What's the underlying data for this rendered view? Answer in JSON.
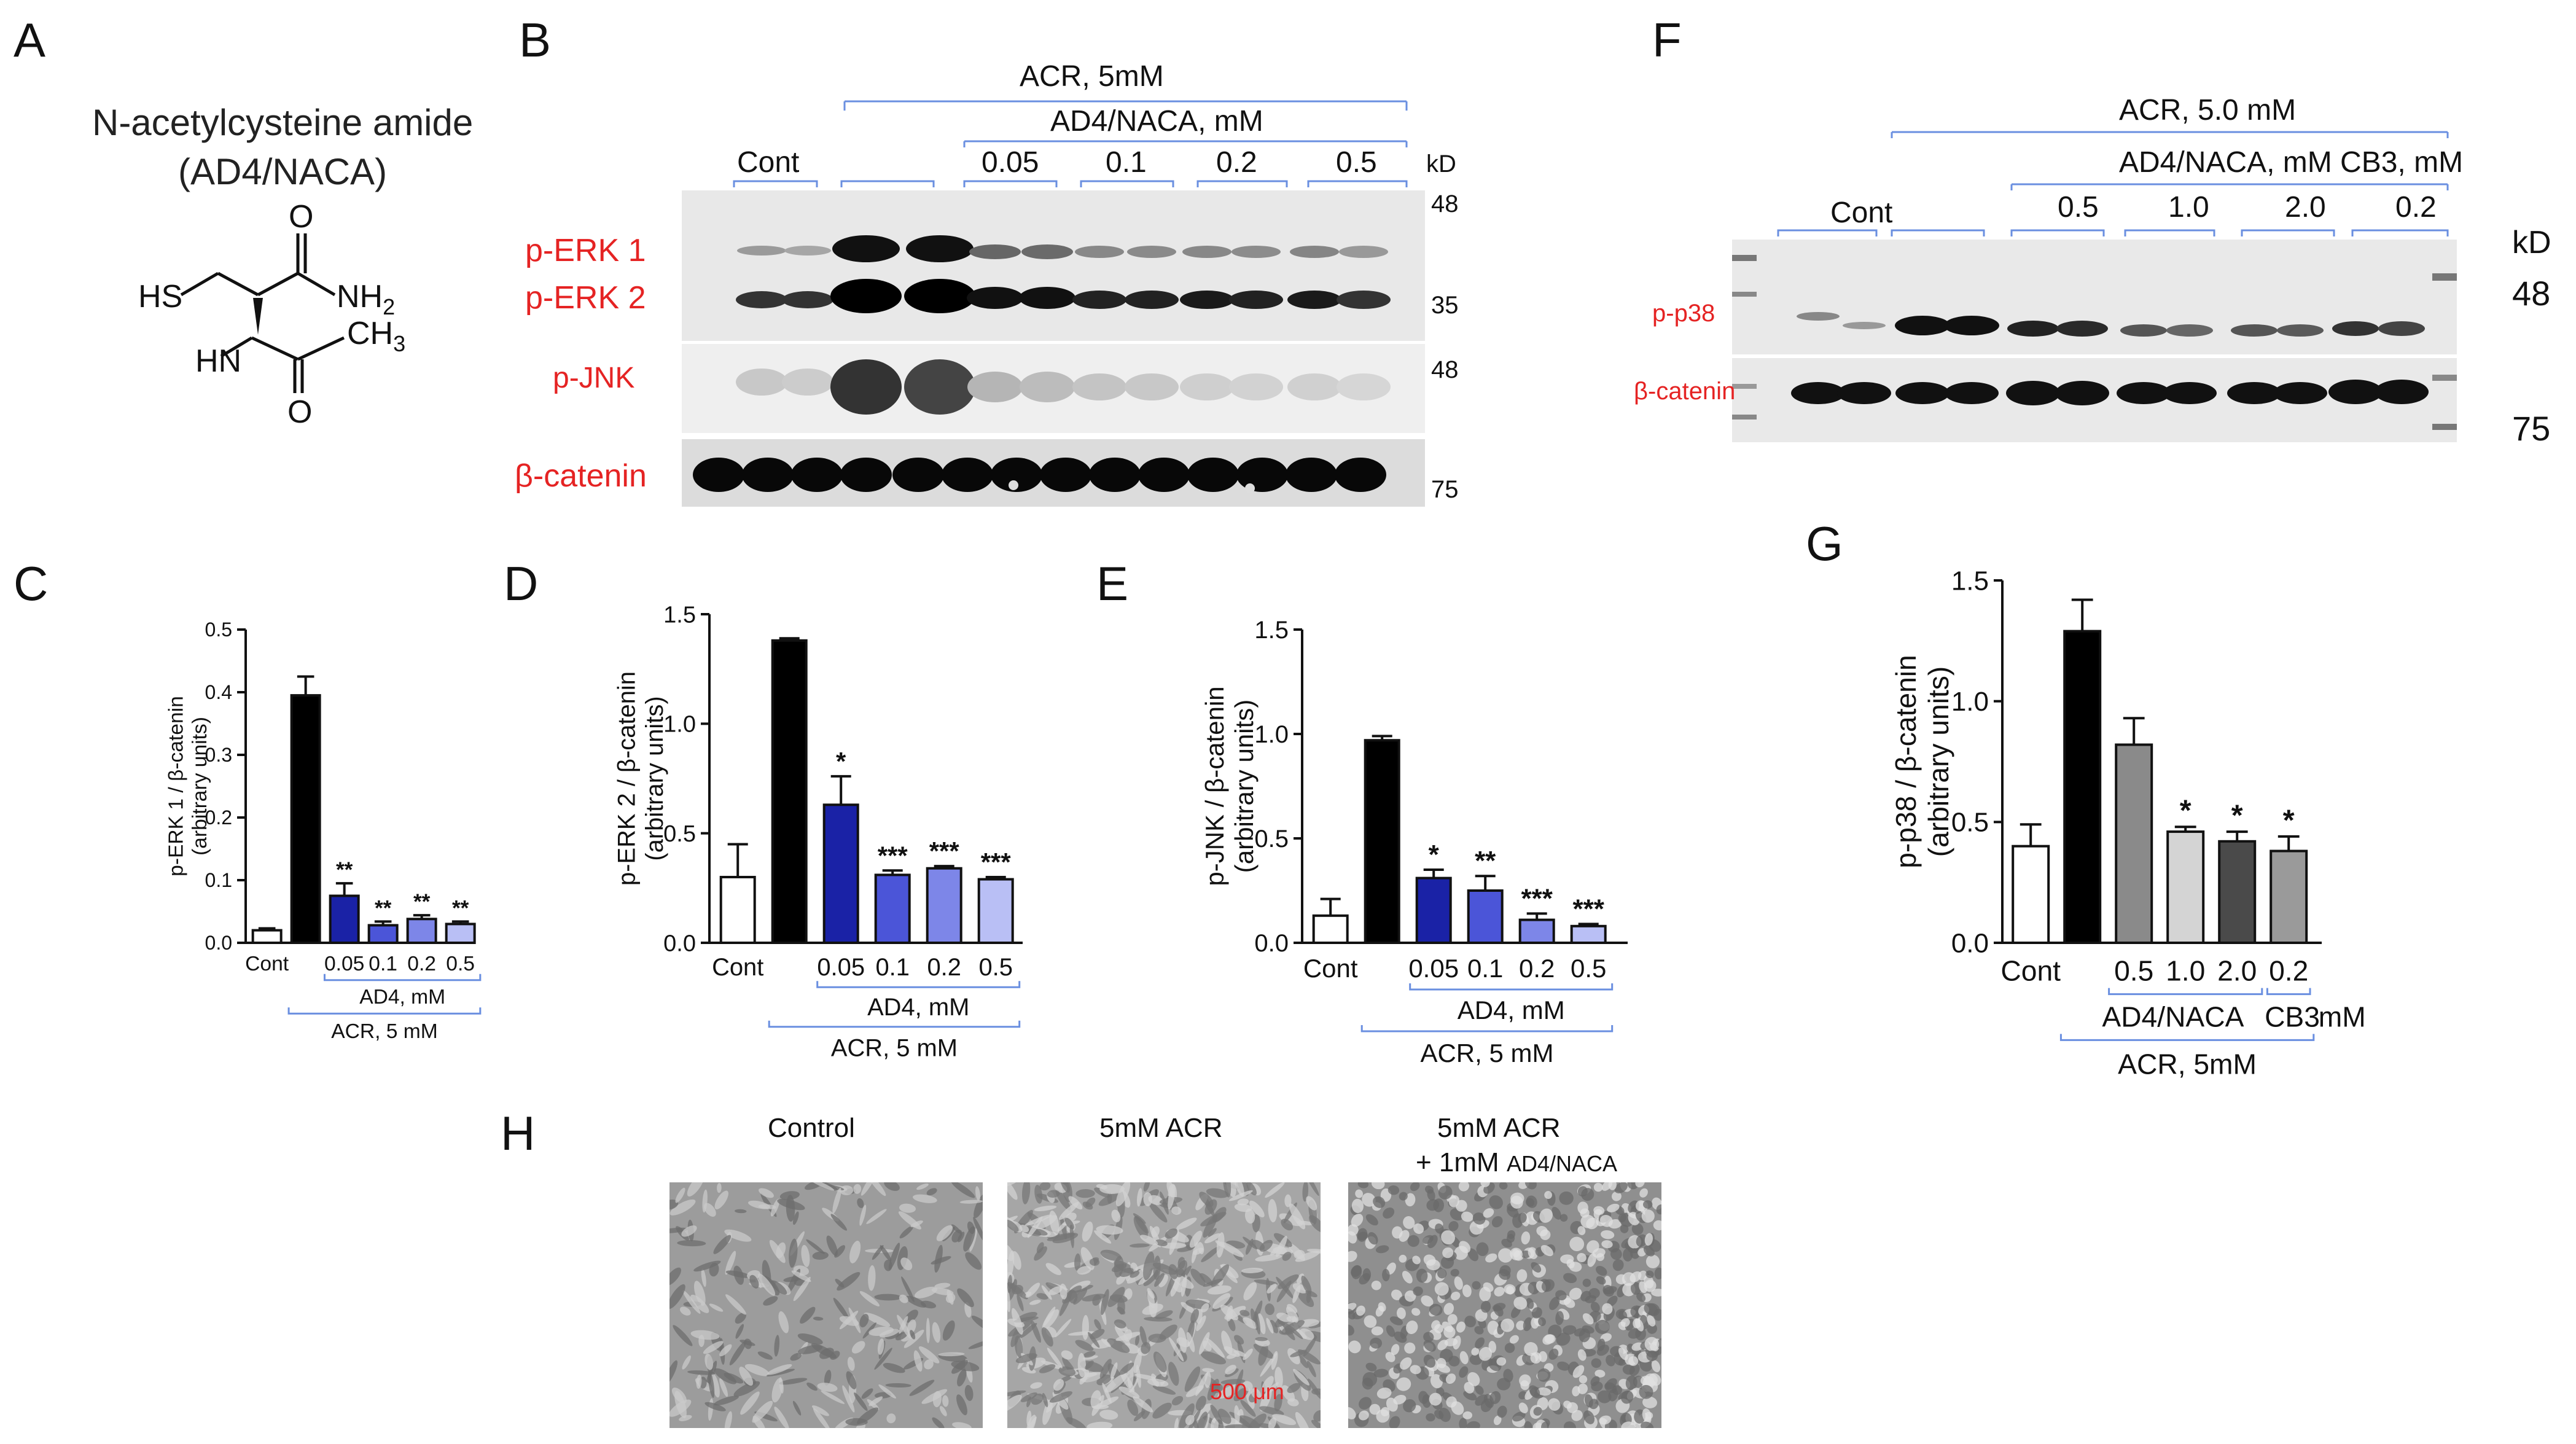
{
  "panels": {
    "A": {
      "letter": "A",
      "title_line1": "N-acetylcysteine amide",
      "title_line2": "(AD4/NACA)",
      "atoms": {
        "hs": "HS",
        "nh2": "NH",
        "nh2_sub": "2",
        "hn": "HN",
        "ch3": "CH",
        "ch3_sub": "3",
        "o_top": "O",
        "o_bottom": "O"
      }
    },
    "B": {
      "letter": "B",
      "header_acr": "ACR, 5mM",
      "header_ad4": "AD4/NACA, mM",
      "cont": "Cont",
      "doses": [
        "0.05",
        "0.1",
        "0.2",
        "0.5"
      ],
      "kd": "kD",
      "mw": [
        "48",
        "35",
        "48",
        "75"
      ],
      "bands": [
        "p-ERK 1",
        "p-ERK 2",
        "p-JNK",
        "β-catenin"
      ]
    },
    "F": {
      "letter": "F",
      "header_acr": "ACR, 5.0 mM",
      "header_ad4": "AD4/NACA, mM CB3, mM",
      "cont": "Cont",
      "doses": [
        "0.5",
        "1.0",
        "2.0",
        "0.2"
      ],
      "kd": "kD",
      "mw": [
        "48",
        "75"
      ],
      "bands": [
        "p-p38",
        "β-catenin"
      ]
    },
    "H": {
      "letter": "H",
      "titles": [
        "Control",
        "5mM ACR",
        "5mM ACR",
        "+ 1mM"
      ],
      "title_small": "AD4/NACA",
      "scale": "500 μm"
    }
  },
  "chart_data": [
    {
      "id": "C",
      "letter": "C",
      "type": "bar",
      "categories": [
        "Cont",
        "",
        "0.05",
        "0.1",
        "0.2",
        "0.5"
      ],
      "values": [
        0.02,
        0.395,
        0.075,
        0.028,
        0.038,
        0.03
      ],
      "errors": [
        0.003,
        0.03,
        0.02,
        0.006,
        0.006,
        0.004
      ],
      "sig": [
        "",
        "",
        "**",
        "**",
        "**",
        "**"
      ],
      "colors": [
        "#ffffff",
        "#000000",
        "#1a22a6",
        "#4b55d8",
        "#7d86e8",
        "#b9bff5"
      ],
      "ylim": [
        0,
        0.5
      ],
      "yticks": [
        "0.0",
        "0.1",
        "0.2",
        "0.3",
        "0.4",
        "0.5"
      ],
      "ylabel": "p-ERK 1 / β-catenin",
      "ylabel2": "(arbitrary units)",
      "group1": "AD4, mM",
      "group2": "ACR, 5 mM"
    },
    {
      "id": "D",
      "letter": "D",
      "type": "bar",
      "categories": [
        "Cont",
        "",
        "0.05",
        "0.1",
        "0.2",
        "0.5"
      ],
      "values": [
        0.3,
        1.38,
        0.63,
        0.31,
        0.34,
        0.29
      ],
      "errors": [
        0.15,
        0.01,
        0.13,
        0.02,
        0.01,
        0.01
      ],
      "sig": [
        "",
        "",
        "*",
        "***",
        "***",
        "***"
      ],
      "colors": [
        "#ffffff",
        "#000000",
        "#1a22a6",
        "#4b55d8",
        "#7d86e8",
        "#b9bff5"
      ],
      "ylim": [
        0,
        1.5
      ],
      "yticks": [
        "0.0",
        "0.5",
        "1.0",
        "1.5"
      ],
      "ylabel": "p-ERK 2 / β-catenin",
      "ylabel2": "(arbitrary units)",
      "group1": "AD4, mM",
      "group2": "ACR, 5 mM"
    },
    {
      "id": "E",
      "letter": "E",
      "type": "bar",
      "categories": [
        "Cont",
        "",
        "0.05",
        "0.1",
        "0.2",
        "0.5"
      ],
      "values": [
        0.13,
        0.97,
        0.31,
        0.25,
        0.11,
        0.08
      ],
      "errors": [
        0.08,
        0.02,
        0.04,
        0.07,
        0.03,
        0.01
      ],
      "sig": [
        "",
        "",
        "*",
        "**",
        "***",
        "***"
      ],
      "colors": [
        "#ffffff",
        "#000000",
        "#1a22a6",
        "#4b55d8",
        "#7d86e8",
        "#b9bff5"
      ],
      "ylim": [
        0,
        1.5
      ],
      "yticks": [
        "0.0",
        "0.5",
        "1.0",
        "1.5"
      ],
      "ylabel": "p-JNK / β-catenin",
      "ylabel2": "(arbitrary units)",
      "group1": "AD4, mM",
      "group2": "ACR, 5 mM"
    },
    {
      "id": "G",
      "letter": "G",
      "type": "bar",
      "categories": [
        "Cont",
        "",
        "0.5",
        "1.0",
        "2.0",
        "0.2"
      ],
      "values": [
        0.4,
        1.29,
        0.82,
        0.46,
        0.42,
        0.38
      ],
      "errors": [
        0.09,
        0.13,
        0.11,
        0.02,
        0.04,
        0.06
      ],
      "sig": [
        "",
        "",
        "",
        "*",
        "*",
        "*"
      ],
      "colors": [
        "#ffffff",
        "#000000",
        "#8a8a8a",
        "#d4d4d4",
        "#4a4a4a",
        "#9a9a9a"
      ],
      "ylim": [
        0,
        1.5
      ],
      "yticks": [
        "0.0",
        "0.5",
        "1.0",
        "1.5"
      ],
      "ylabel": "p-p38 / β-catenin",
      "ylabel2": "(arbitrary units)",
      "group1": "AD4/NACA",
      "group1b": "CB3",
      "group1c": "mM",
      "group2": "ACR, 5mM"
    }
  ]
}
